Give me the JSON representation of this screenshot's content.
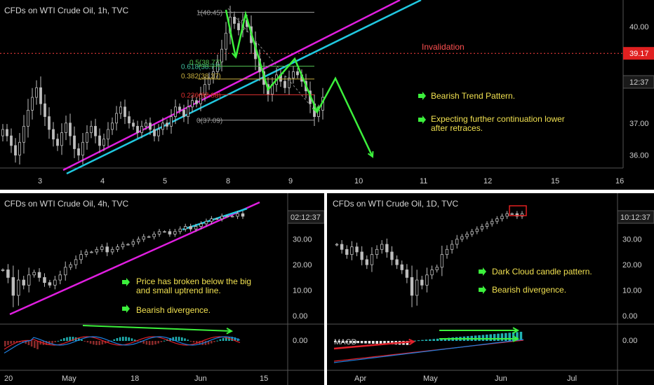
{
  "panels": {
    "hourly": {
      "title": "CFDs on WTI Crude Oil, 1h, TVC",
      "price_axis": [
        "40.00",
        "37.00",
        "36.00"
      ],
      "last_price": "39.17",
      "countdown": "12:37",
      "time_axis": [
        "3",
        "4",
        "5",
        "8",
        "9",
        "10",
        "11",
        "12",
        "15",
        "16"
      ],
      "invalidation_label": "Invalidation",
      "fib_levels": [
        "1(40.45)",
        "0.618(38.77)",
        "0.5(38.77)",
        "0.382(38.37)",
        "0.236(37.88)",
        "0(37.09)"
      ],
      "notes": [
        "Bearish Trend Pattern.",
        "Expecting further continuation lower",
        "after retraces."
      ]
    },
    "four_hour": {
      "title": "CFDs on WTI Crude Oil, 4h, TVC",
      "price_axis": [
        "30.00",
        "20.00",
        "10.00",
        "0.00",
        "0.00"
      ],
      "countdown": "02:12:37",
      "time_axis": [
        "20",
        "May",
        "18",
        "Jun",
        "15"
      ],
      "notes": [
        "Price has broken below the big",
        "and small uptrend line.",
        "Bearish divergence."
      ]
    },
    "daily": {
      "title": "CFDs on WTI Crude Oil, 1D, TVC",
      "price_axis": [
        "30.00",
        "20.00",
        "10.00",
        "0.00",
        "0.00"
      ],
      "countdown": "10:12:37",
      "time_axis": [
        "Apr",
        "May",
        "Jun",
        "Jul"
      ],
      "macd_label": "MACD",
      "notes": [
        "Dark Cloud candle pattern.",
        "Bearish divergence."
      ]
    }
  },
  "colors": {
    "background": "#000000",
    "candles": "#bdbdbd",
    "green_arrow": "#3cf03c",
    "trendline_magenta": "#e01ee0",
    "trendline_cyan": "#20c8e0",
    "invalidation": "#ff4040",
    "note_text": "#f0e050",
    "macd_red": "#e0202a",
    "macd_blue": "#2080e0",
    "macd_hist": "#20b0b0"
  },
  "chart_data": [
    {
      "type": "candlestick",
      "title": "CFDs on WTI Crude Oil, 1h, TVC",
      "x_ticks": [
        "3",
        "4",
        "5",
        "8",
        "9",
        "10",
        "11",
        "12",
        "15",
        "16"
      ],
      "y_ticks": [
        36.0,
        37.0,
        40.0
      ],
      "ylim": [
        35.6,
        40.7
      ],
      "close": [
        36.8,
        36.6,
        36.3,
        36.0,
        36.4,
        36.9,
        37.4,
        37.8,
        38.1,
        37.6,
        37.2,
        36.8,
        36.5,
        36.3,
        36.7,
        37.0,
        36.6,
        36.2,
        36.0,
        36.4,
        36.7,
        36.9,
        36.6,
        36.3,
        36.5,
        36.8,
        37.0,
        37.3,
        37.5,
        37.2,
        37.0,
        36.9,
        36.7,
        36.9,
        37.0,
        36.8,
        36.6,
        36.8,
        37.0,
        36.9,
        37.2,
        37.5,
        37.4,
        37.2,
        37.5,
        37.7,
        37.6,
        37.9,
        38.2,
        38.4,
        38.6,
        38.9,
        39.3,
        39.8,
        40.3,
        40.1,
        39.9,
        40.2,
        40.0,
        39.5,
        39.0,
        38.6,
        38.2,
        37.9,
        38.2,
        38.5,
        38.3,
        38.1,
        38.4,
        38.6,
        38.5,
        38.3,
        38.0,
        37.6,
        37.2,
        37.4,
        37.8
      ],
      "fib_levels": [
        40.45,
        38.77,
        38.77,
        38.37,
        37.88,
        37.09
      ],
      "invalidation": 39.17,
      "last_price": 39.17
    },
    {
      "type": "candlestick",
      "title": "CFDs on WTI Crude Oil, 4h, TVC",
      "x_ticks": [
        "20",
        "May",
        "18",
        "Jun",
        "15"
      ],
      "y_ticks": [
        0,
        10,
        20,
        30
      ],
      "ylim": [
        -3,
        42
      ],
      "close": [
        18,
        15,
        8,
        14,
        12,
        16,
        17,
        15,
        13,
        12,
        14,
        16,
        19,
        20,
        22,
        24,
        25,
        25,
        26,
        27,
        25,
        26,
        27,
        28,
        28,
        29,
        30,
        31,
        31,
        32,
        33,
        33,
        32,
        33,
        34,
        35,
        34,
        35,
        36,
        37,
        38,
        38,
        39,
        39,
        39,
        40,
        39
      ]
    },
    {
      "type": "candlestick",
      "title": "CFDs on WTI Crude Oil, 1D, TVC",
      "x_ticks": [
        "Apr",
        "May",
        "Jun",
        "Jul"
      ],
      "y_ticks": [
        0,
        10,
        20,
        30
      ],
      "ylim": [
        -3,
        42
      ],
      "close": [
        28,
        26,
        24,
        27,
        25,
        22,
        20,
        24,
        26,
        28,
        25,
        22,
        20,
        18,
        15,
        8,
        14,
        12,
        16,
        18,
        19,
        24,
        26,
        28,
        30,
        31,
        32,
        33,
        34,
        35,
        36,
        37,
        38,
        39,
        40,
        40,
        39,
        40
      ]
    }
  ]
}
